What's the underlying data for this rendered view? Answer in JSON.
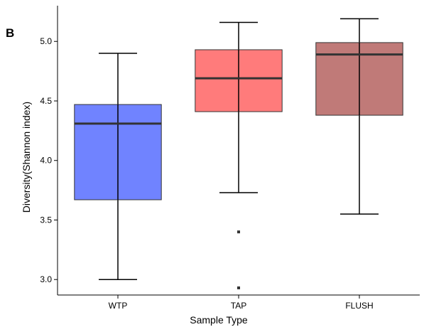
{
  "chart_data": {
    "type": "box",
    "panel_label": "B",
    "xlabel": "Sample Type",
    "ylabel": "Diversity(Shannon index)",
    "ylim": [
      2.87,
      5.3
    ],
    "yticks": [
      3.0,
      3.5,
      4.0,
      4.5,
      5.0
    ],
    "ytick_labels": [
      "3.0",
      "3.5",
      "4.0",
      "4.5",
      "5.0"
    ],
    "grid": false,
    "legend": "none",
    "categories": [
      "WTP",
      "TAP",
      "FLUSH"
    ],
    "boxes": [
      {
        "category": "WTP",
        "color": "#7083FF",
        "whisker_low": 3.0,
        "q1": 3.67,
        "median": 4.31,
        "q3": 4.47,
        "whisker_high": 4.9,
        "outliers": []
      },
      {
        "category": "TAP",
        "color": "#FF7B7B",
        "whisker_low": 3.73,
        "q1": 4.41,
        "median": 4.69,
        "q3": 4.93,
        "whisker_high": 5.16,
        "outliers": [
          3.4,
          2.93
        ]
      },
      {
        "category": "FLUSH",
        "color": "#C07A78",
        "whisker_low": 3.55,
        "q1": 4.38,
        "median": 4.89,
        "q3": 4.99,
        "whisker_high": 5.19,
        "outliers": []
      }
    ]
  }
}
